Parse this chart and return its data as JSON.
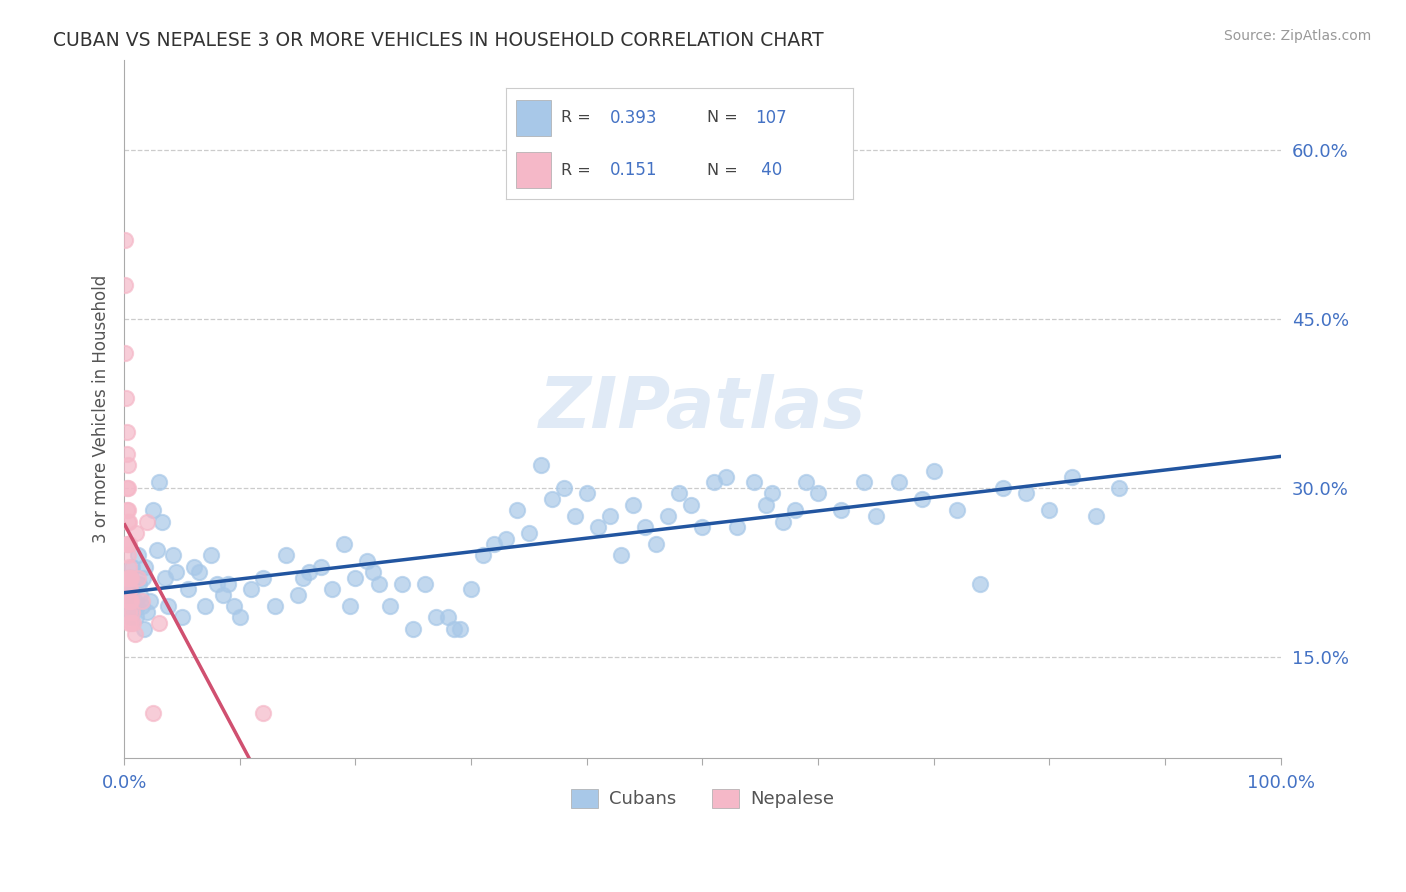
{
  "title": "CUBAN VS NEPALESE 3 OR MORE VEHICLES IN HOUSEHOLD CORRELATION CHART",
  "source": "Source: ZipAtlas.com",
  "ylabel": "3 or more Vehicles in Household",
  "ytick_vals": [
    0.15,
    0.3,
    0.45,
    0.6
  ],
  "ytick_labels": [
    "15.0%",
    "30.0%",
    "45.0%",
    "60.0%"
  ],
  "xtick_labels": [
    "0.0%",
    "100.0%"
  ],
  "xtick_vals": [
    0.0,
    1.0
  ],
  "legend_R_blue": "0.393",
  "legend_N_blue": "107",
  "legend_R_pink": "0.151",
  "legend_N_pink": "40",
  "blue_color": "#a8c8e8",
  "pink_color": "#f5b8c8",
  "trendline_blue": "#2255a0",
  "trendline_pink": "#d05070",
  "watermark": "ZIPatlas",
  "xlim": [
    0.0,
    1.0
  ],
  "ylim": [
    0.06,
    0.68
  ],
  "cubans_x": [
    0.002,
    0.003,
    0.004,
    0.005,
    0.006,
    0.007,
    0.008,
    0.009,
    0.01,
    0.01,
    0.011,
    0.012,
    0.013,
    0.014,
    0.015,
    0.016,
    0.017,
    0.018,
    0.02,
    0.022,
    0.025,
    0.028,
    0.03,
    0.033,
    0.035,
    0.038,
    0.042,
    0.045,
    0.05,
    0.055,
    0.06,
    0.065,
    0.07,
    0.075,
    0.08,
    0.085,
    0.09,
    0.095,
    0.1,
    0.11,
    0.12,
    0.13,
    0.14,
    0.15,
    0.155,
    0.16,
    0.17,
    0.18,
    0.19,
    0.195,
    0.2,
    0.21,
    0.215,
    0.22,
    0.23,
    0.24,
    0.25,
    0.26,
    0.27,
    0.28,
    0.285,
    0.29,
    0.3,
    0.31,
    0.32,
    0.33,
    0.34,
    0.35,
    0.36,
    0.37,
    0.38,
    0.39,
    0.4,
    0.41,
    0.42,
    0.43,
    0.44,
    0.45,
    0.46,
    0.47,
    0.48,
    0.49,
    0.5,
    0.51,
    0.52,
    0.53,
    0.545,
    0.555,
    0.56,
    0.57,
    0.58,
    0.59,
    0.6,
    0.62,
    0.64,
    0.65,
    0.67,
    0.69,
    0.7,
    0.72,
    0.74,
    0.76,
    0.78,
    0.8,
    0.82,
    0.84,
    0.86
  ],
  "cubans_y": [
    0.21,
    0.2,
    0.195,
    0.22,
    0.185,
    0.23,
    0.21,
    0.2,
    0.195,
    0.185,
    0.195,
    0.24,
    0.215,
    0.205,
    0.195,
    0.22,
    0.175,
    0.23,
    0.19,
    0.2,
    0.28,
    0.245,
    0.305,
    0.27,
    0.22,
    0.195,
    0.24,
    0.225,
    0.185,
    0.21,
    0.23,
    0.225,
    0.195,
    0.24,
    0.215,
    0.205,
    0.215,
    0.195,
    0.185,
    0.21,
    0.22,
    0.195,
    0.24,
    0.205,
    0.22,
    0.225,
    0.23,
    0.21,
    0.25,
    0.195,
    0.22,
    0.235,
    0.225,
    0.215,
    0.195,
    0.215,
    0.175,
    0.215,
    0.185,
    0.185,
    0.175,
    0.175,
    0.21,
    0.24,
    0.25,
    0.255,
    0.28,
    0.26,
    0.32,
    0.29,
    0.3,
    0.275,
    0.295,
    0.265,
    0.275,
    0.24,
    0.285,
    0.265,
    0.25,
    0.275,
    0.295,
    0.285,
    0.265,
    0.305,
    0.31,
    0.265,
    0.305,
    0.285,
    0.295,
    0.27,
    0.28,
    0.305,
    0.295,
    0.28,
    0.305,
    0.275,
    0.305,
    0.29,
    0.315,
    0.28,
    0.215,
    0.3,
    0.295,
    0.28,
    0.31,
    0.275,
    0.3
  ],
  "nepalese_x": [
    0.0005,
    0.001,
    0.001,
    0.0015,
    0.002,
    0.002,
    0.002,
    0.002,
    0.002,
    0.003,
    0.003,
    0.003,
    0.003,
    0.003,
    0.003,
    0.003,
    0.004,
    0.004,
    0.004,
    0.004,
    0.004,
    0.004,
    0.004,
    0.004,
    0.005,
    0.005,
    0.005,
    0.006,
    0.006,
    0.006,
    0.007,
    0.008,
    0.009,
    0.01,
    0.012,
    0.015,
    0.02,
    0.025,
    0.03,
    0.12
  ],
  "nepalese_y": [
    0.52,
    0.48,
    0.42,
    0.38,
    0.35,
    0.33,
    0.3,
    0.28,
    0.25,
    0.32,
    0.3,
    0.28,
    0.27,
    0.25,
    0.24,
    0.22,
    0.27,
    0.25,
    0.23,
    0.22,
    0.21,
    0.2,
    0.19,
    0.18,
    0.22,
    0.21,
    0.2,
    0.22,
    0.2,
    0.18,
    0.19,
    0.18,
    0.17,
    0.26,
    0.22,
    0.2,
    0.27,
    0.1,
    0.18,
    0.1
  ]
}
